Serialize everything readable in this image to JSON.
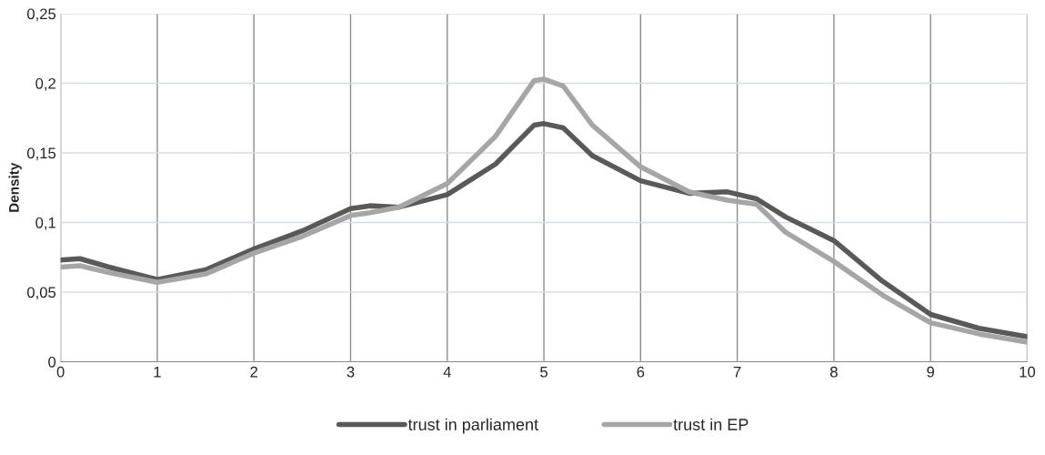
{
  "chart_data": {
    "type": "line",
    "ylabel": "Density",
    "x": [
      0,
      0.2,
      0.5,
      1,
      1.5,
      2,
      2.5,
      3,
      3.2,
      3.5,
      4,
      4.5,
      4.9,
      5,
      5.2,
      5.5,
      6,
      6.5,
      6.9,
      7.2,
      7.5,
      8,
      8.5,
      9,
      9.5,
      10
    ],
    "series": [
      {
        "name": "trust in parliament",
        "color": "#595959",
        "values": [
          0.073,
          0.074,
          0.068,
          0.059,
          0.066,
          0.081,
          0.094,
          0.11,
          0.112,
          0.111,
          0.12,
          0.142,
          0.17,
          0.171,
          0.168,
          0.148,
          0.13,
          0.121,
          0.122,
          0.117,
          0.104,
          0.087,
          0.058,
          0.034,
          0.024,
          0.018
        ]
      },
      {
        "name": "trust in EP",
        "color": "#a6a6a6",
        "values": [
          0.068,
          0.069,
          0.064,
          0.057,
          0.063,
          0.078,
          0.09,
          0.105,
          0.107,
          0.111,
          0.128,
          0.162,
          0.202,
          0.203,
          0.198,
          0.17,
          0.14,
          0.122,
          0.116,
          0.113,
          0.093,
          0.072,
          0.048,
          0.028,
          0.02,
          0.014
        ]
      }
    ],
    "xlim": [
      0,
      10
    ],
    "xticks": [
      0,
      1,
      2,
      3,
      4,
      5,
      6,
      7,
      8,
      9,
      10
    ],
    "ylim": [
      0,
      0.25
    ],
    "yticks": [
      {
        "value": 0,
        "label": "0"
      },
      {
        "value": 0.05,
        "label": "0,05"
      },
      {
        "value": 0.1,
        "label": "0,1"
      },
      {
        "value": 0.15,
        "label": "0,15"
      },
      {
        "value": 0.2,
        "label": "0,2"
      },
      {
        "value": 0.25,
        "label": "0,25"
      }
    ],
    "grid": true,
    "legend": "bottom",
    "marker": "none",
    "line_style": "solid"
  }
}
